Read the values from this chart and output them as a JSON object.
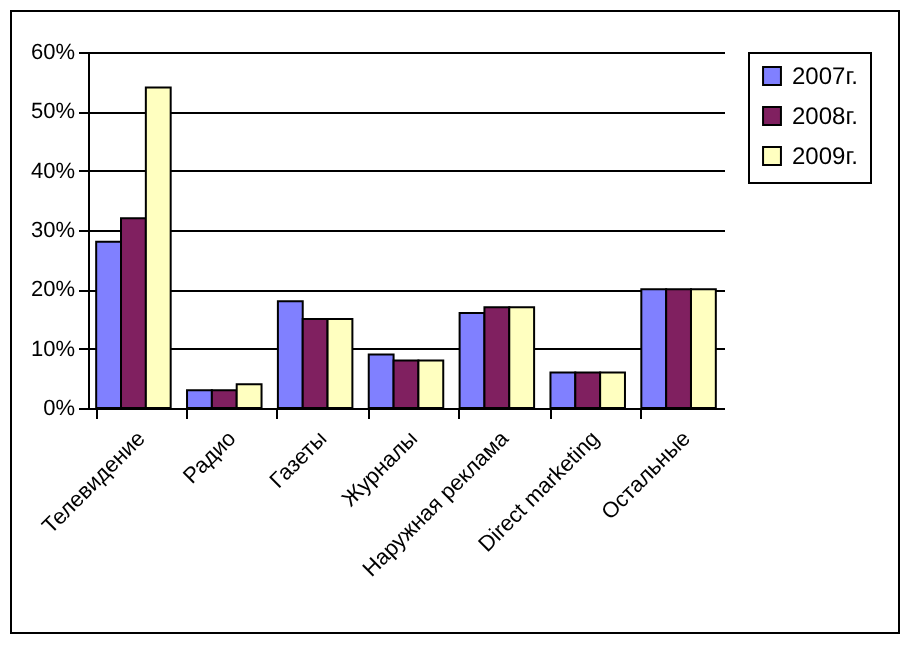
{
  "chart_data": {
    "type": "bar",
    "categories": [
      "Телевидение",
      "Радио",
      "Газеты",
      "Журналы",
      "Наружная реклама",
      "Direct marketing",
      "Остальные"
    ],
    "series": [
      {
        "name": "2007г.",
        "color": "#8080ff",
        "values": [
          28,
          3,
          18,
          9,
          16,
          6,
          20
        ]
      },
      {
        "name": "2008г.",
        "color": "#802060",
        "values": [
          32,
          3,
          15,
          8,
          17,
          6,
          20
        ]
      },
      {
        "name": "2009г.",
        "color": "#ffffc0",
        "values": [
          54,
          4,
          15,
          8,
          17,
          6,
          20
        ]
      }
    ],
    "ylim": [
      0,
      60
    ],
    "yticks": [
      {
        "value": 0,
        "label": "0%"
      },
      {
        "value": 10,
        "label": "10%"
      },
      {
        "value": 20,
        "label": "20%"
      },
      {
        "value": 30,
        "label": "30%"
      },
      {
        "value": 40,
        "label": "40%"
      },
      {
        "value": 50,
        "label": "50%"
      },
      {
        "value": 60,
        "label": "60%"
      }
    ],
    "grid": "y",
    "legend": "right"
  }
}
